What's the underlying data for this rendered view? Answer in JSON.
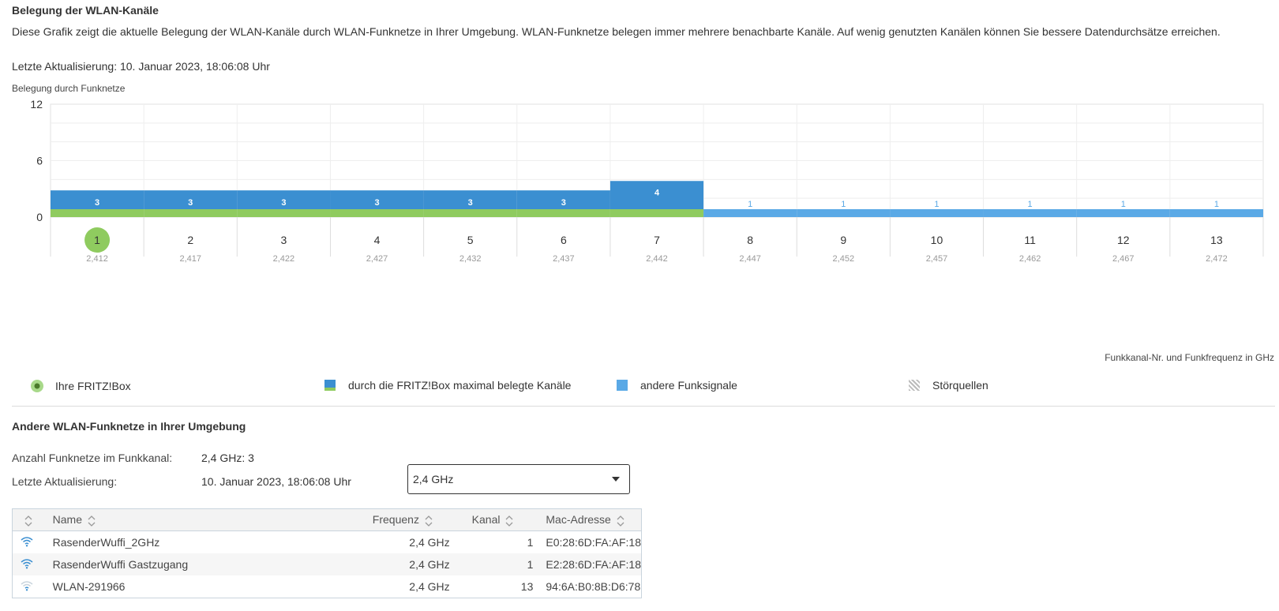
{
  "page": {
    "title": "Belegung der WLAN-Kanäle",
    "intro": "Diese Grafik zeigt die aktuelle Belegung der WLAN-Kanäle durch WLAN-Funknetze in Ihrer Umgebung. WLAN-Funknetze belegen immer mehrere benachbarte Kanäle. Auf wenig genutzten Kanälen können Sie bessere Datendurchsätze erreichen.",
    "last_update": "Letzte Aktualisierung: 10. Januar 2023, 18:06:08 Uhr"
  },
  "chart_data": {
    "type": "bar",
    "title": "Belegung durch Funknetze",
    "xlabel": "Funkkanal-Nr. und Funkfrequenz in GHz",
    "ylim": [
      0,
      12
    ],
    "yticks": [
      "0",
      "6",
      "12"
    ],
    "categories": [
      "1",
      "2",
      "3",
      "4",
      "5",
      "6",
      "7",
      "8",
      "9",
      "10",
      "11",
      "12",
      "13"
    ],
    "frequencies": [
      "2,412",
      "2,417",
      "2,422",
      "2,427",
      "2,432",
      "2,437",
      "2,442",
      "2,447",
      "2,452",
      "2,457",
      "2,462",
      "2,467",
      "2,472"
    ],
    "own_channel": "1",
    "series": [
      {
        "name": "durch die FRITZ!Box maximal belegte Kanäle",
        "color": "#3b8fd1",
        "values": [
          3,
          3,
          3,
          3,
          3,
          3,
          4,
          0,
          0,
          0,
          0,
          0,
          0
        ]
      },
      {
        "name": "andere Funksignale",
        "color": "#5aa9e6",
        "values": [
          0,
          0,
          0,
          0,
          0,
          0,
          0,
          1,
          1,
          1,
          1,
          1,
          1
        ]
      }
    ],
    "own_band_color": "#8fcb5f"
  },
  "legend": {
    "fritzbox": "Ihre FRITZ!Box",
    "max_channels": "durch die FRITZ!Box maximal belegte Kanäle",
    "other_signals": "andere Funksignale",
    "interference": "Störquellen"
  },
  "networks": {
    "title": "Andere WLAN-Funknetze in Ihrer Umgebung",
    "count_label": "Anzahl Funknetze im Funkkanal:",
    "count_value": "2,4 GHz: 3",
    "update_label": "Letzte Aktualisierung:",
    "update_value": "10. Januar 2023, 18:06:08 Uhr",
    "band_select": "2,4 GHz",
    "columns": {
      "name": "Name",
      "frequency": "Frequenz",
      "channel": "Kanal",
      "mac": "Mac-Adresse"
    },
    "rows": [
      {
        "name": "RasenderWuffi_2GHz",
        "frequency": "2,4 GHz",
        "channel": "1",
        "mac": "E0:28:6D:FA:AF:18",
        "signal": 0.9
      },
      {
        "name": "RasenderWuffi Gastzugang",
        "frequency": "2,4 GHz",
        "channel": "1",
        "mac": "E2:28:6D:FA:AF:18",
        "signal": 0.9
      },
      {
        "name": "WLAN-291966",
        "frequency": "2,4 GHz",
        "channel": "13",
        "mac": "94:6A:B0:8B:D6:78",
        "signal": 0.3
      }
    ]
  },
  "icons": {
    "wifi": "wifi-signal-icon",
    "sort": "sort-arrows-icon",
    "dropdown": "chevron-down-icon"
  }
}
